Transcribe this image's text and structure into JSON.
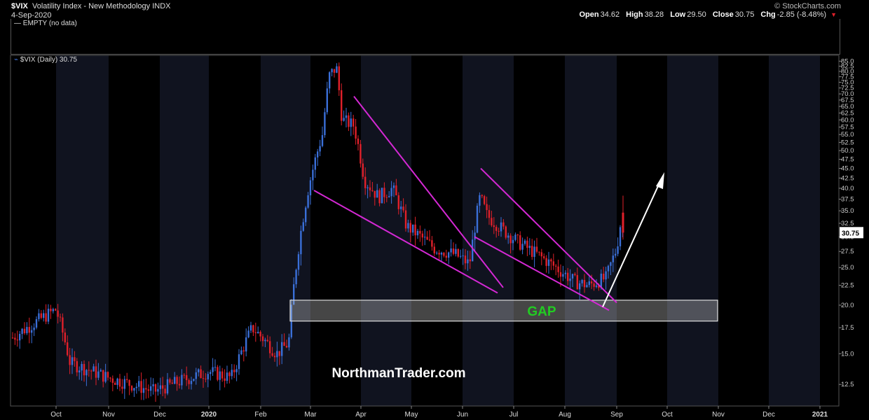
{
  "header": {
    "symbol": "$VIX",
    "name": "Volatility Index - New Methodology  INDX",
    "date": "4-Sep-2020",
    "brand": "© StockCharts.com",
    "ohlc": {
      "open_label": "Open",
      "open": "34.62",
      "high_label": "High",
      "high": "38.28",
      "low_label": "Low",
      "low": "29.50",
      "close_label": "Close",
      "close": "30.75",
      "chg_label": "Chg",
      "chg": "-2.85 (-8.48%)"
    }
  },
  "upper_panel": {
    "legend": "EMPTY (no data)"
  },
  "main_panel": {
    "legend": "$VIX (Daily) 30.75",
    "last_price_tag": "30.75"
  },
  "annotations": {
    "gap_label": "GAP",
    "watermark": "NorthmanTrader.com"
  },
  "colors": {
    "up": "#3a6fd8",
    "down": "#e0202a",
    "trendline": "#d428d4",
    "gap_label": "#22cc22",
    "arrow": "#ffffff",
    "background": "#000000"
  },
  "chart_data": {
    "type": "candlestick",
    "y_scale": "log",
    "ylim": [
      11,
      88
    ],
    "y_ticks": [
      "12.5",
      "15.0",
      "17.5",
      "20.0",
      "22.5",
      "25.0",
      "27.5",
      "30.0",
      "32.5",
      "35.0",
      "37.5",
      "40.0",
      "42.5",
      "45.0",
      "47.5",
      "50.0",
      "52.5",
      "55.0",
      "57.5",
      "60.0",
      "62.5",
      "65.0",
      "67.5",
      "70.0",
      "72.5",
      "75.0",
      "77.5",
      "80.0",
      "82.5",
      "85.0"
    ],
    "x_ticks": [
      "Oct",
      "Nov",
      "Dec",
      "2020",
      "Feb",
      "Mar",
      "Apr",
      "May",
      "Jun",
      "Jul",
      "Aug",
      "Sep",
      "Oct",
      "Nov",
      "Dec",
      "2021"
    ],
    "series": [
      {
        "month": "Sep 2019",
        "close": 15.5
      },
      {
        "month": "Oct 2019",
        "close": 13.2
      },
      {
        "month": "Nov 2019",
        "close": 12.6
      },
      {
        "month": "Dec 2019",
        "close": 13.8
      },
      {
        "month": "Jan 2020",
        "close": 18.8
      },
      {
        "month": "Feb 2020",
        "close": 40.1
      },
      {
        "month": "Mar 2020",
        "close": 53.5
      },
      {
        "month": "Apr 2020",
        "close": 34.2
      },
      {
        "month": "May 2020",
        "close": 27.5
      },
      {
        "month": "Jun 2020",
        "close": 30.4
      },
      {
        "month": "Jul 2020",
        "close": 24.5
      },
      {
        "month": "Aug 2020",
        "close": 26.4
      },
      {
        "month": "Sep 2020",
        "close": 30.75
      }
    ],
    "last_bar": {
      "date": "4-Sep-2020",
      "open": 34.62,
      "high": 38.28,
      "low": 29.5,
      "close": 30.75
    },
    "gap_zone": [
      18.2,
      20.6
    ],
    "annotations": [
      "GAP"
    ]
  }
}
